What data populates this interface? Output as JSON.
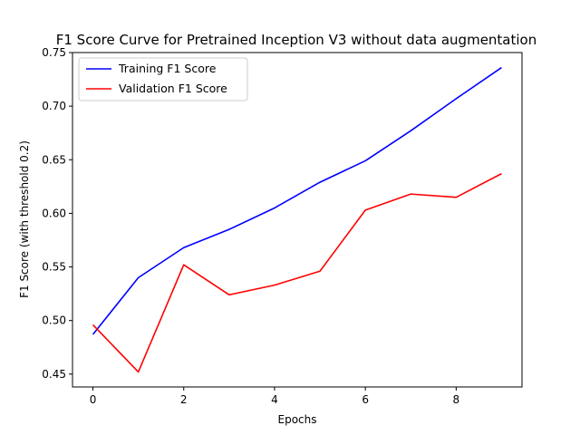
{
  "chart_data": {
    "type": "line",
    "title": "F1 Score Curve for Pretrained Inception V3 without data augmentation",
    "xlabel": "Epochs",
    "ylabel": "F1 Score (with threshold 0.2)",
    "xlim": [
      -0.45,
      9.45
    ],
    "ylim": [
      0.438,
      0.75
    ],
    "xticks": [
      0,
      2,
      4,
      6,
      8
    ],
    "yticks": [
      0.45,
      0.5,
      0.55,
      0.6,
      0.65,
      0.7,
      0.75
    ],
    "ytick_labels": [
      "0.45",
      "0.50",
      "0.55",
      "0.60",
      "0.65",
      "0.70",
      "0.75"
    ],
    "grid": false,
    "legend_position": "top-left",
    "x": [
      0,
      1,
      2,
      3,
      4,
      5,
      6,
      7,
      8,
      9
    ],
    "series": [
      {
        "name": "Training F1 Score",
        "color": "#0000ff",
        "values": [
          0.487,
          0.54,
          0.568,
          0.585,
          0.605,
          0.629,
          0.649,
          0.677,
          0.707,
          0.736
        ]
      },
      {
        "name": "Validation F1 Score",
        "color": "#ff0000",
        "values": [
          0.496,
          0.452,
          0.552,
          0.524,
          0.533,
          0.546,
          0.603,
          0.618,
          0.615,
          0.637
        ]
      }
    ]
  }
}
